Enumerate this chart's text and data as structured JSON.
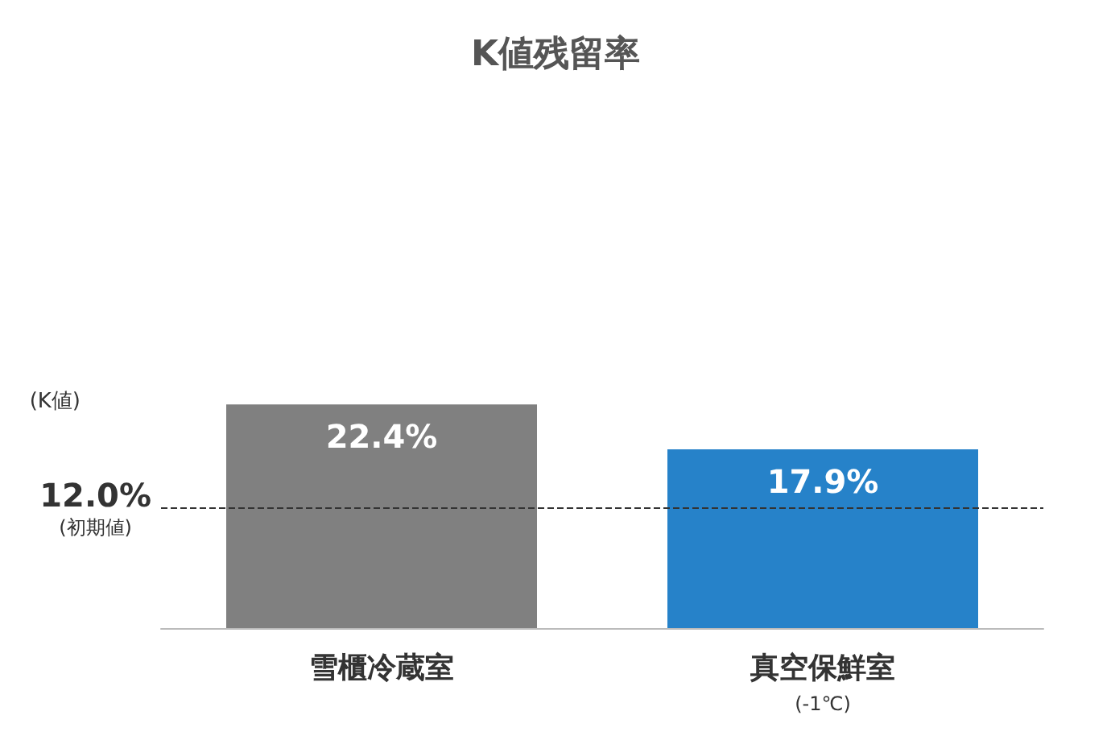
{
  "chart_data": {
    "type": "bar",
    "title": "K値残留率",
    "ylabel": "(K値)",
    "categories": [
      "雪櫃冷蔵室",
      "真空保鮮室\n(-1℃)"
    ],
    "values": [
      22.4,
      17.9
    ],
    "colors": [
      "#808080",
      "#2682c9"
    ],
    "value_labels": [
      "22.4%",
      "17.9%"
    ],
    "tick_labels": "x",
    "grid": false,
    "ref_lines": [
      {
        "axis": "y",
        "value": 12.0,
        "label": "12.0%\n(初期値)",
        "color": "#333333",
        "line_style": "dashed"
      }
    ]
  }
}
